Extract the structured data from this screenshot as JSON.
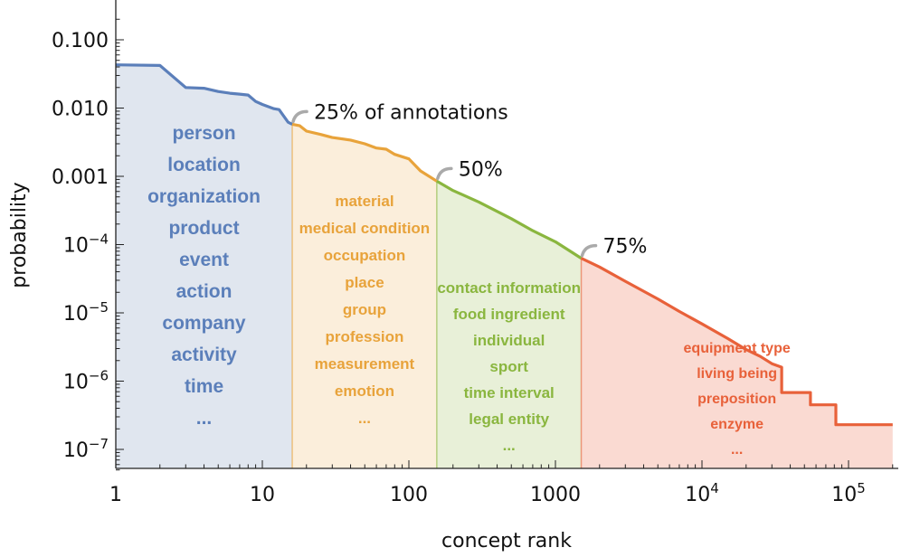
{
  "chart_data": {
    "type": "area",
    "xlabel": "concept rank",
    "ylabel": "probability",
    "x_scale": "log",
    "y_scale": "log",
    "xlim": [
      1,
      200000
    ],
    "ylim": [
      5e-08,
      0.25
    ],
    "x_ticks": [
      {
        "value": 1,
        "label": "1"
      },
      {
        "value": 10,
        "label": "10"
      },
      {
        "value": 100,
        "label": "100"
      },
      {
        "value": 1000,
        "label": "1000"
      },
      {
        "value": 10000,
        "base": "10",
        "exp": "4"
      },
      {
        "value": 100000,
        "base": "10",
        "exp": "5"
      }
    ],
    "y_ticks": [
      {
        "value": 0.1,
        "label": "0.100"
      },
      {
        "value": 0.01,
        "label": "0.010"
      },
      {
        "value": 0.001,
        "label": "0.001"
      },
      {
        "value": 0.0001,
        "base": "10",
        "exp": "−4"
      },
      {
        "value": 1e-05,
        "base": "10",
        "exp": "−5"
      },
      {
        "value": 1e-06,
        "base": "10",
        "exp": "−6"
      },
      {
        "value": 1e-07,
        "base": "10",
        "exp": "−7"
      }
    ],
    "curve": [
      [
        1,
        0.043
      ],
      [
        2,
        0.042
      ],
      [
        3,
        0.02
      ],
      [
        4,
        0.0195
      ],
      [
        5,
        0.0175
      ],
      [
        6,
        0.0165
      ],
      [
        7,
        0.016
      ],
      [
        8,
        0.0155
      ],
      [
        9,
        0.0125
      ],
      [
        10,
        0.0113
      ],
      [
        12,
        0.0098
      ],
      [
        13,
        0.0095
      ],
      [
        15,
        0.0062
      ],
      [
        16,
        0.0058
      ],
      [
        18,
        0.0055
      ],
      [
        20,
        0.0046
      ],
      [
        25,
        0.0041
      ],
      [
        30,
        0.0037
      ],
      [
        40,
        0.0034
      ],
      [
        50,
        0.003
      ],
      [
        60,
        0.0026
      ],
      [
        70,
        0.0025
      ],
      [
        80,
        0.0021
      ],
      [
        100,
        0.0018
      ],
      [
        120,
        0.0012
      ],
      [
        155,
        0.00085
      ],
      [
        200,
        0.00062
      ],
      [
        300,
        0.00042
      ],
      [
        500,
        0.00024
      ],
      [
        700,
        0.00016
      ],
      [
        1000,
        0.00011
      ],
      [
        1500,
        6.3e-05
      ],
      [
        2000,
        4.7e-05
      ],
      [
        3000,
        2.9e-05
      ],
      [
        5000,
        1.6e-05
      ],
      [
        7000,
        1.05e-05
      ],
      [
        10000,
        6.9e-06
      ],
      [
        15000,
        4.2e-06
      ],
      [
        20000,
        2.9e-06
      ],
      [
        25000,
        2.3e-06
      ],
      [
        30000,
        1.8e-06
      ],
      [
        35000,
        1.6e-06
      ],
      [
        35000,
        6.8e-07
      ],
      [
        55000,
        6.8e-07
      ],
      [
        55000,
        4.5e-07
      ],
      [
        82000,
        4.5e-07
      ],
      [
        82000,
        2.3e-07
      ],
      [
        200000,
        2.3e-07
      ]
    ],
    "segments": [
      {
        "from": 1,
        "to": 16,
        "color": "#5b7fba",
        "fill": "#e0e6ef",
        "boundary_label": "25% of annotations",
        "concepts": [
          "person",
          "location",
          "organization",
          "product",
          "event",
          "action",
          "company",
          "activity",
          "time",
          "..."
        ]
      },
      {
        "from": 16,
        "to": 155,
        "color": "#e8a33b",
        "fill": "#fbeedb",
        "boundary_label": "50%",
        "concepts": [
          "material",
          "medical condition",
          "occupation",
          "place",
          "group",
          "profession",
          "measurement",
          "emotion",
          "..."
        ]
      },
      {
        "from": 155,
        "to": 1500,
        "color": "#8ab63f",
        "fill": "#e8f0d8",
        "boundary_label": "75%",
        "concepts": [
          "contact information",
          "food ingredient",
          "individual",
          "sport",
          "time interval",
          "legal entity",
          "..."
        ]
      },
      {
        "from": 1500,
        "to": 200000,
        "color": "#e8613a",
        "fill": "#fadad2",
        "boundary_label": "",
        "concepts": [
          "equipment type",
          "living being",
          "preposition",
          "enzyme",
          "..."
        ]
      }
    ],
    "annotation_color": "#aaaaaa"
  }
}
